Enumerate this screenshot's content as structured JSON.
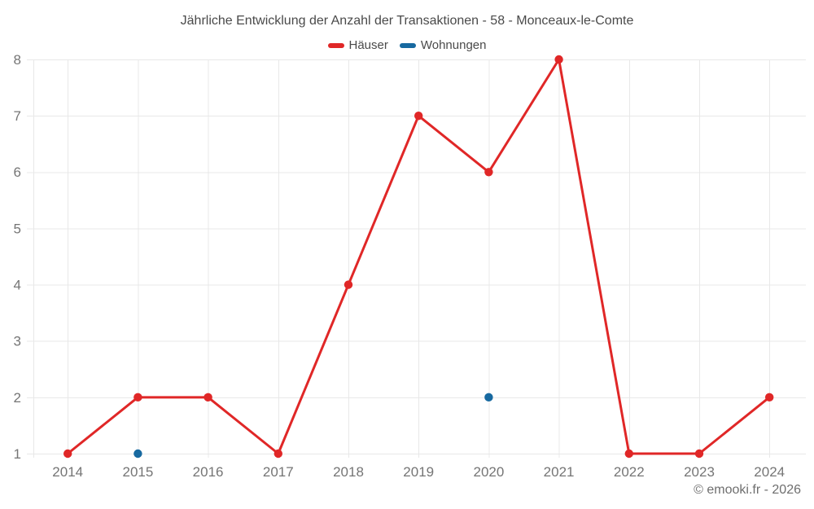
{
  "title": "Jährliche Entwicklung der Anzahl der Transaktionen - 58 - Monceaux-le-Comte",
  "footer": "© emooki.fr - 2026",
  "colors": {
    "haeuser": "#e02727",
    "wohnungen": "#1769a0",
    "gridline": "#e8e8e8",
    "axis_label": "#757575",
    "title_text": "#4a4a4a",
    "footer_text": "#6e6e6e"
  },
  "chart_data": {
    "type": "line",
    "title": "Jährliche Entwicklung der Anzahl der Transaktionen - 58 - Monceaux-le-Comte",
    "categories": [
      "2014",
      "2015",
      "2016",
      "2017",
      "2018",
      "2019",
      "2020",
      "2021",
      "2022",
      "2023",
      "2024"
    ],
    "series": [
      {
        "name": "Häuser",
        "color": "#e02727",
        "values": [
          1,
          2,
          2,
          1,
          4,
          7,
          6,
          8,
          1,
          1,
          2
        ]
      },
      {
        "name": "Wohnungen",
        "color": "#1769a0",
        "values": [
          null,
          1,
          null,
          null,
          null,
          null,
          2,
          null,
          null,
          null,
          null
        ]
      }
    ],
    "xlabel": "",
    "ylabel": "",
    "ylim": [
      1,
      8
    ],
    "yticks": [
      1,
      2,
      3,
      4,
      5,
      6,
      7,
      8
    ],
    "grid": true,
    "legend_position": "top"
  }
}
